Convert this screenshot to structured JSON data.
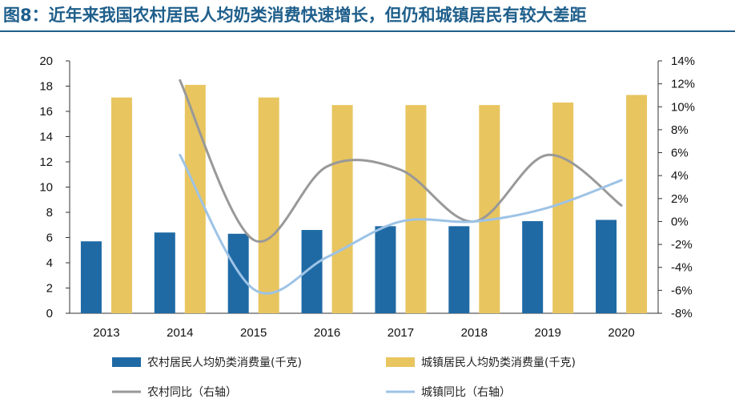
{
  "title": "图8：近年来我国农村居民人均奶类消费快速增长，但仍和城镇居民有较大差距",
  "chart_data": {
    "type": "bar",
    "categories": [
      "2013",
      "2014",
      "2015",
      "2016",
      "2017",
      "2018",
      "2019",
      "2020"
    ],
    "series": [
      {
        "name": "农村居民人均奶类消费量(千克)",
        "kind": "bar",
        "axis": "left",
        "color": "#1f6aa5",
        "values": [
          5.7,
          6.4,
          6.3,
          6.6,
          6.9,
          6.9,
          7.3,
          7.4
        ]
      },
      {
        "name": "城镇居民人均奶类消费量(千克)",
        "kind": "bar",
        "axis": "left",
        "color": "#e8c55f",
        "values": [
          17.1,
          18.1,
          17.1,
          16.5,
          16.5,
          16.5,
          16.7,
          17.3
        ]
      },
      {
        "name": "农村同比（右轴）",
        "kind": "line",
        "axis": "right",
        "color": "#999999",
        "values": [
          null,
          12.3,
          -1.6,
          4.8,
          4.5,
          0.0,
          5.8,
          1.4
        ]
      },
      {
        "name": "城镇同比（右轴）",
        "kind": "line",
        "axis": "right",
        "color": "#9dc3e6",
        "values": [
          null,
          5.8,
          -5.9,
          -3.1,
          0.0,
          0.0,
          1.2,
          3.6
        ]
      }
    ],
    "y_left": {
      "min": 0,
      "max": 20,
      "ticks": [
        "0",
        "2",
        "4",
        "6",
        "8",
        "10",
        "12",
        "14",
        "16",
        "18",
        "20"
      ]
    },
    "y_right": {
      "min": -8,
      "max": 14,
      "ticks": [
        "-8%",
        "-6%",
        "-4%",
        "-2%",
        "0%",
        "2%",
        "4%",
        "6%",
        "8%",
        "10%",
        "12%",
        "14%"
      ]
    },
    "grid": false,
    "legend_position": "bottom"
  }
}
